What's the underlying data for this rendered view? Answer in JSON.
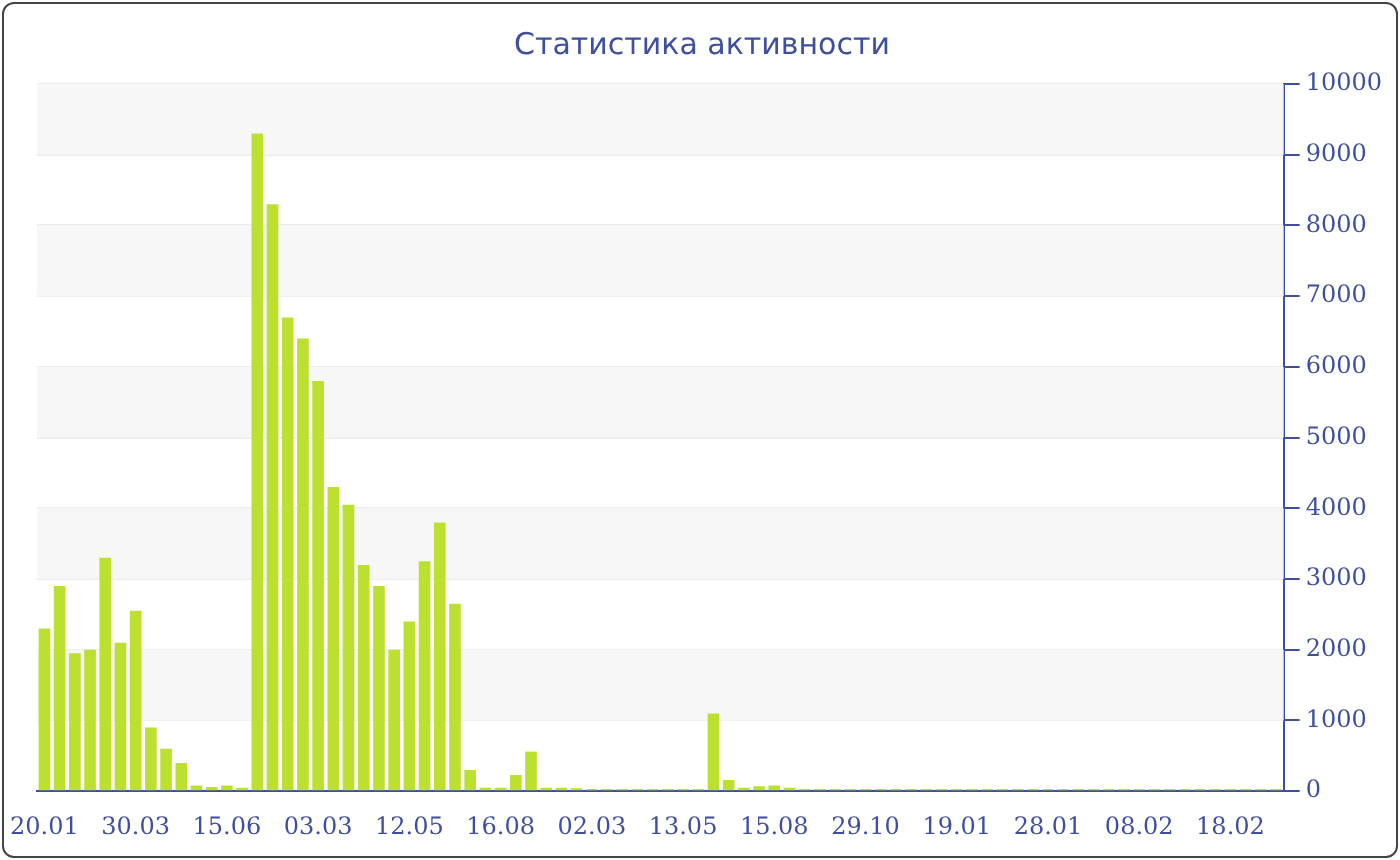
{
  "chart_data": {
    "type": "bar",
    "title": "Статистика активности",
    "categories": [
      "20.01",
      null,
      null,
      null,
      null,
      null,
      "30.03",
      null,
      null,
      null,
      null,
      null,
      "15.06",
      null,
      null,
      null,
      null,
      null,
      "03.03",
      null,
      null,
      null,
      null,
      null,
      "12.05",
      null,
      null,
      null,
      null,
      null,
      "16.08",
      null,
      null,
      null,
      null,
      null,
      "02.03",
      null,
      null,
      null,
      null,
      null,
      "13.05",
      null,
      null,
      null,
      null,
      null,
      "15.08",
      null,
      null,
      null,
      null,
      null,
      "29.10",
      null,
      null,
      null,
      null,
      null,
      "19.01",
      null,
      null,
      null,
      null,
      null,
      "28.01",
      null,
      null,
      null,
      null,
      null,
      "08.02",
      null,
      null,
      null,
      null,
      null,
      "18.02",
      null,
      null,
      null
    ],
    "values": [
      2300,
      2900,
      1950,
      2000,
      3300,
      2100,
      2550,
      900,
      600,
      400,
      80,
      60,
      80,
      50,
      9300,
      8300,
      6700,
      6400,
      5800,
      4300,
      4050,
      3200,
      2900,
      2000,
      2400,
      3250,
      3800,
      2650,
      300,
      50,
      50,
      230,
      560,
      50,
      50,
      40,
      30,
      30,
      30,
      30,
      30,
      30,
      30,
      30,
      1100,
      160,
      50,
      70,
      80,
      50,
      30,
      30,
      30,
      30,
      30,
      30,
      30,
      30,
      30,
      30,
      30,
      30,
      30,
      30,
      30,
      30,
      30,
      30,
      30,
      30,
      30,
      30,
      30,
      30,
      30,
      30,
      30,
      30,
      30,
      30,
      30,
      30
    ],
    "color": "#bbe030",
    "ylim": [
      0,
      10000
    ],
    "yticks": [
      0,
      1000,
      2000,
      3000,
      4000,
      5000,
      6000,
      7000,
      8000,
      9000,
      10000
    ],
    "grid": "y"
  }
}
